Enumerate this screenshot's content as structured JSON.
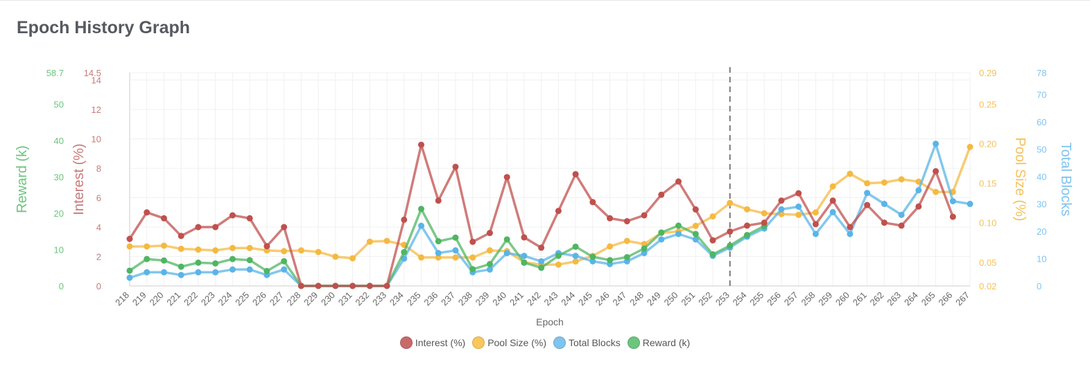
{
  "page": {
    "title": "Epoch History Graph"
  },
  "chart_data": {
    "type": "line",
    "xlabel": "Epoch",
    "categories": [
      "218",
      "219",
      "220",
      "221",
      "222",
      "223",
      "224",
      "225",
      "226",
      "227",
      "228",
      "229",
      "230",
      "231",
      "232",
      "233",
      "234",
      "235",
      "236",
      "237",
      "238",
      "239",
      "240",
      "241",
      "242",
      "243",
      "244",
      "245",
      "246",
      "247",
      "248",
      "249",
      "250",
      "251",
      "252",
      "253",
      "254",
      "255",
      "256",
      "257",
      "258",
      "259",
      "260",
      "261",
      "262",
      "263",
      "264",
      "265",
      "266",
      "267"
    ],
    "current_epoch_marker": "253",
    "grid": true,
    "legend_position": "bottom",
    "axes": {
      "reward": {
        "label": "Reward (k)",
        "min": 0,
        "max": 58.7,
        "ticks": [
          "0",
          "10",
          "20",
          "30",
          "40",
          "50",
          "58.7"
        ],
        "position": "left-outer",
        "color": "#6cc57d"
      },
      "interest": {
        "label": "Interest (%)",
        "min": 0,
        "max": 14.5,
        "ticks": [
          "0",
          "2",
          "4",
          "6",
          "8",
          "10",
          "12",
          "14",
          "14.5"
        ],
        "position": "left-inner",
        "color": "#c77a7a"
      },
      "pool": {
        "label": "Pool Size (%)",
        "min": 0.02,
        "max": 0.29,
        "ticks": [
          "0.02",
          "0.05",
          "0.10",
          "0.15",
          "0.20",
          "0.25",
          "0.29"
        ],
        "position": "right-inner",
        "color": "#f5c15a"
      },
      "blocks": {
        "label": "Total Blocks",
        "min": 0,
        "max": 78,
        "ticks": [
          "0",
          "10",
          "20",
          "30",
          "40",
          "50",
          "60",
          "70",
          "78"
        ],
        "position": "right-outer",
        "color": "#7ec4ef"
      }
    },
    "series": [
      {
        "name": "Interest (%)",
        "axis": "interest",
        "color": "#c0504d",
        "fill": "#c86a6a",
        "values": [
          3.2,
          5.0,
          4.6,
          3.4,
          4.0,
          4.0,
          4.8,
          4.6,
          2.7,
          4.0,
          0,
          0,
          0,
          0,
          0,
          0,
          4.5,
          9.6,
          5.8,
          8.1,
          3.0,
          3.6,
          7.4,
          3.3,
          2.6,
          5.1,
          7.6,
          5.7,
          4.6,
          4.4,
          4.8,
          6.2,
          7.1,
          5.2,
          3.1,
          3.7,
          4.1,
          4.3,
          5.8,
          6.3,
          4.2,
          5.8,
          4.0,
          5.5,
          4.3,
          4.1,
          5.4,
          7.8,
          4.7,
          null
        ]
      },
      {
        "name": "Pool Size (%)",
        "axis": "pool",
        "color": "#f5b942",
        "fill": "#f9c75b",
        "values": [
          0.07,
          0.07,
          0.071,
          0.067,
          0.066,
          0.065,
          0.068,
          0.068,
          0.065,
          0.064,
          0.065,
          0.063,
          0.057,
          0.055,
          0.076,
          0.077,
          0.072,
          0.056,
          0.056,
          0.056,
          0.056,
          0.065,
          0.064,
          0.05,
          0.047,
          0.047,
          0.051,
          0.058,
          0.07,
          0.077,
          0.073,
          0.087,
          0.089,
          0.096,
          0.108,
          0.125,
          0.117,
          0.112,
          0.111,
          0.11,
          0.113,
          0.146,
          0.162,
          0.15,
          0.151,
          0.155,
          0.152,
          0.139,
          0.139,
          0.196
        ]
      },
      {
        "name": "Total Blocks",
        "axis": "blocks",
        "color": "#5ab4e8",
        "fill": "#7ec4ef",
        "values": [
          3,
          5,
          5,
          4,
          5,
          5,
          6,
          6,
          4,
          6,
          0,
          0,
          0,
          0,
          0,
          0,
          10,
          22,
          12,
          13,
          5,
          6,
          12,
          11,
          9,
          12,
          11,
          9,
          8,
          9,
          12,
          17,
          19,
          17,
          11,
          14,
          18,
          21,
          28,
          29,
          19,
          27,
          19,
          34,
          30,
          26,
          35,
          52,
          31,
          30
        ]
      },
      {
        "name": "Reward (k)",
        "axis": "reward",
        "color": "#4fb562",
        "fill": "#6cc57d",
        "values": [
          4.2,
          7.4,
          7.0,
          5.3,
          6.4,
          6.2,
          7.4,
          7.1,
          4.1,
          6.8,
          0,
          0,
          0,
          0,
          0,
          0,
          9.3,
          21.2,
          12.3,
          13.3,
          4.6,
          6.0,
          12.8,
          6.4,
          5.0,
          8.3,
          10.8,
          8.0,
          7.1,
          7.9,
          10.3,
          14.7,
          16.6,
          14.3,
          8.7,
          11.1,
          14.0,
          16.5,
          null,
          null,
          null,
          null,
          null,
          null,
          null,
          null,
          null,
          null,
          null,
          null
        ]
      }
    ]
  }
}
